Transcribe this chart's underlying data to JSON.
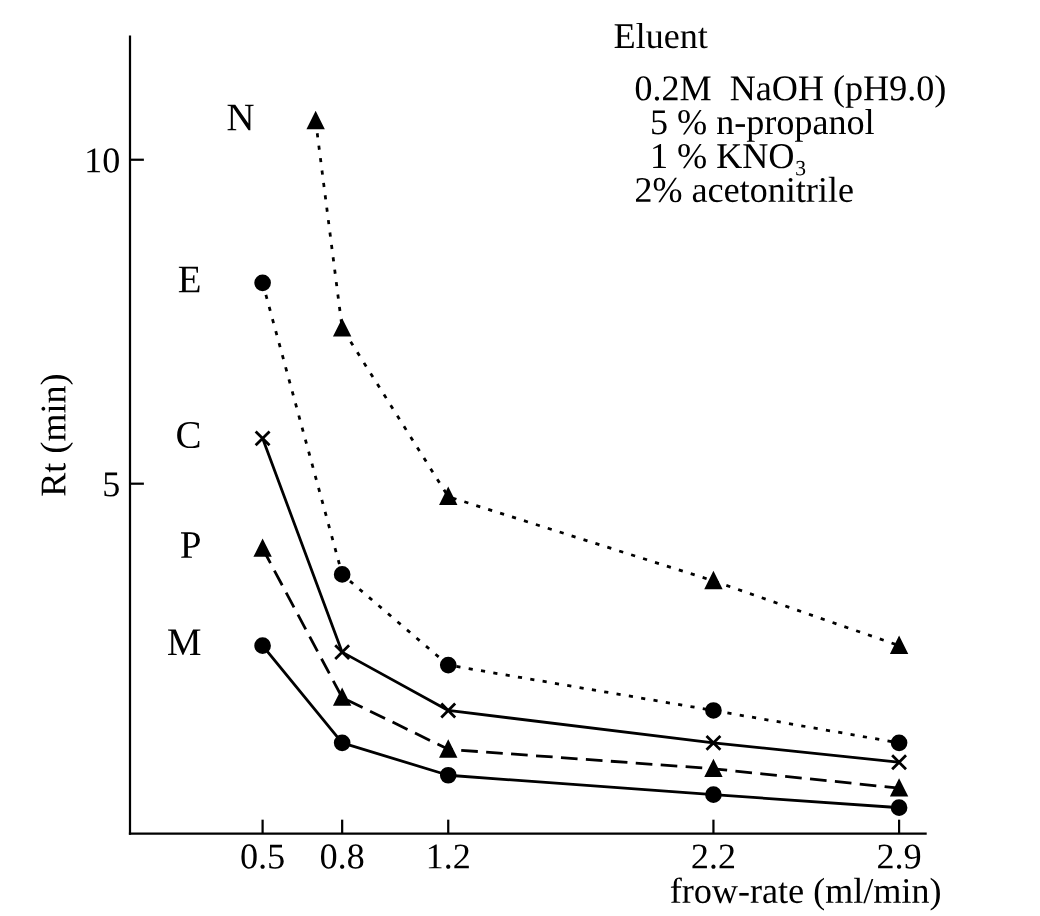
{
  "chart_data": {
    "type": "line",
    "xlabel": "frow-rate (ml/min)",
    "ylabel": "Rt (min)",
    "xlim": [
      0,
      3.0
    ],
    "ylim": [
      -0.4,
      11.9
    ],
    "xticks": [
      {
        "value": 0.5,
        "label": "0.5"
      },
      {
        "value": 0.8,
        "label": "0.8"
      },
      {
        "value": 1.2,
        "label": "1.2"
      },
      {
        "value": 2.2,
        "label": "2.2"
      },
      {
        "value": 2.9,
        "label": "2.9"
      }
    ],
    "yticks": [
      5,
      10
    ],
    "grid": false,
    "legend": false,
    "series": [
      {
        "name": "N",
        "color": "#000000",
        "x": [
          0.7,
          0.8,
          1.2,
          2.2,
          2.9
        ],
        "values": [
          10.6,
          7.4,
          4.8,
          3.5,
          2.5
        ],
        "marker": "triangle",
        "line_style": "dotted"
      },
      {
        "name": "E",
        "color": "#000000",
        "x": [
          0.5,
          0.8,
          1.2,
          2.2,
          2.9
        ],
        "values": [
          8.1,
          3.6,
          2.2,
          1.5,
          1.0
        ],
        "marker": "circle",
        "line_style": "dotted"
      },
      {
        "name": "C",
        "color": "#000000",
        "x": [
          0.5,
          0.8,
          1.2,
          2.2,
          2.9
        ],
        "values": [
          5.7,
          2.4,
          1.5,
          1.0,
          0.7
        ],
        "marker": "cross",
        "line_style": "solid"
      },
      {
        "name": "P",
        "color": "#000000",
        "x": [
          0.5,
          0.8,
          1.2,
          2.2,
          2.9
        ],
        "values": [
          4.0,
          1.7,
          0.9,
          0.6,
          0.3
        ],
        "marker": "triangle",
        "line_style": "dashed"
      },
      {
        "name": "M",
        "color": "#000000",
        "x": [
          0.5,
          0.8,
          1.2,
          2.2,
          2.9
        ],
        "values": [
          2.5,
          1.0,
          0.5,
          0.2,
          0.0
        ],
        "marker": "circle",
        "line_style": "solid"
      }
    ],
    "annotations": [
      "Eluent",
      "0.2M  NaOH (pH9.0)",
      "5 % n-propanol",
      "1 % KNO₃",
      "2% acetonitrile"
    ]
  }
}
